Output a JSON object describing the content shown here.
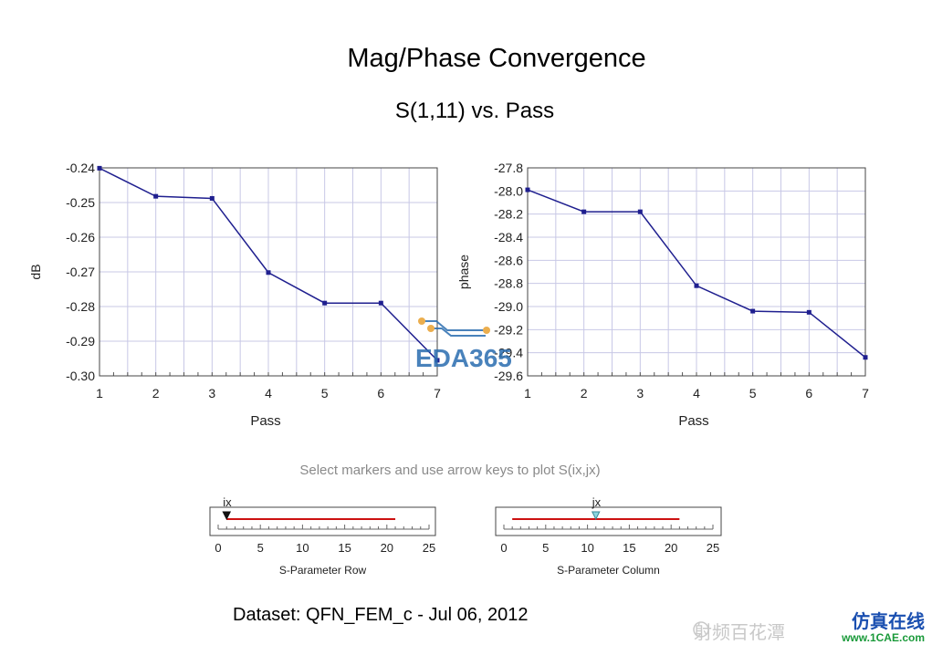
{
  "title": "Mag/Phase Convergence",
  "subtitle": "S(1,11) vs. Pass",
  "hint": "Select markers and use arrow keys to plot S(ix,jx)",
  "dataset": "Dataset: QFN_FEM_c - Jul 06, 2012",
  "colors": {
    "series": "#1f1f8f",
    "grid": "#c8c8e6",
    "slider_track": "#cc1111",
    "hint": "#8a8a8a"
  },
  "chart_data": [
    {
      "type": "line",
      "xlabel": "Pass",
      "ylabel": "dB",
      "xlim": [
        1,
        7
      ],
      "ylim": [
        -0.3,
        -0.24
      ],
      "x_ticks": [
        "1",
        "2",
        "3",
        "4",
        "5",
        "6",
        "7"
      ],
      "y_ticks": [
        "-0.24",
        "-0.25",
        "-0.26",
        "-0.27",
        "-0.28",
        "-0.29",
        "-0.30"
      ],
      "grid": true,
      "x": [
        1,
        2,
        3,
        4,
        5,
        6,
        7
      ],
      "y": [
        -0.2401,
        -0.2482,
        -0.2488,
        -0.2702,
        -0.279,
        -0.279,
        -0.2955
      ]
    },
    {
      "type": "line",
      "xlabel": "Pass",
      "ylabel": "phase",
      "xlim": [
        1,
        7
      ],
      "ylim": [
        -29.6,
        -27.8
      ],
      "x_ticks": [
        "1",
        "2",
        "3",
        "4",
        "5",
        "6",
        "7"
      ],
      "y_ticks": [
        "-27.8",
        "-28.0",
        "-28.2",
        "-28.4",
        "-28.6",
        "-28.8",
        "-29.0",
        "-29.2",
        "-29.4",
        "-29.6"
      ],
      "grid": true,
      "x": [
        1,
        2,
        3,
        4,
        5,
        6,
        7
      ],
      "y": [
        -27.99,
        -28.18,
        -28.18,
        -28.82,
        -29.04,
        -29.05,
        -29.44
      ]
    }
  ],
  "controls": [
    {
      "label": "S-Parameter Row",
      "marker_label": "ix",
      "ticks": [
        "0",
        "5",
        "10",
        "15",
        "20",
        "25"
      ],
      "range": [
        0,
        25
      ],
      "marker_value": 1,
      "track": [
        1,
        21
      ],
      "marker_icon": "triangle-down-black-icon"
    },
    {
      "label": "S-Parameter Column",
      "marker_label": "jx",
      "ticks": [
        "0",
        "5",
        "10",
        "15",
        "20",
        "25"
      ],
      "range": [
        0,
        25
      ],
      "marker_value": 11,
      "track": [
        1,
        21
      ],
      "marker_icon": "triangle-down-cyan-icon"
    }
  ],
  "watermarks": {
    "center": "EDA365",
    "bottom_right_brand": "仿真在线",
    "bottom_right_url": "www.1CAE.com",
    "bottom_right_wechat": "射频百花潭"
  }
}
